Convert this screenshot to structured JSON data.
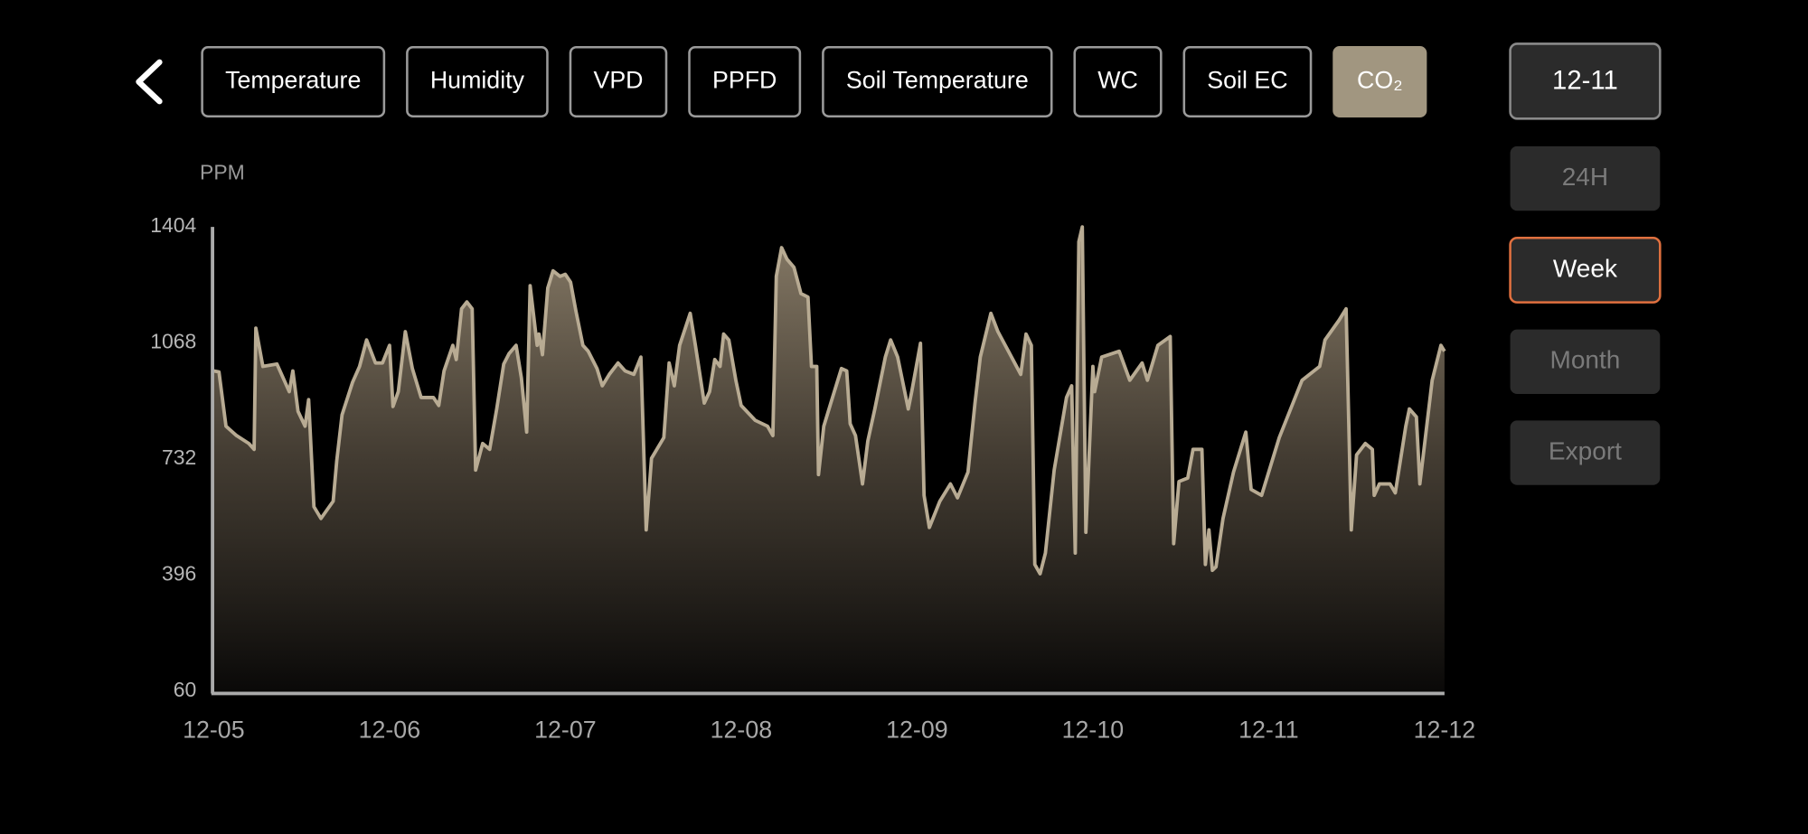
{
  "tabs": [
    {
      "label": "Temperature"
    },
    {
      "label": "Humidity"
    },
    {
      "label": "VPD"
    },
    {
      "label": "PPFD"
    },
    {
      "label": "Soil Temperature"
    },
    {
      "label": "WC"
    },
    {
      "label": "Soil EC"
    },
    {
      "label": "CO₂",
      "selected": true
    }
  ],
  "side": {
    "date": "12-11",
    "ranges": [
      {
        "label": "24H"
      },
      {
        "label": "Week",
        "selected": true
      },
      {
        "label": "Month"
      }
    ],
    "export": "Export"
  },
  "chart_data": {
    "type": "area",
    "y_label": "PPM",
    "color": "#b8ab93",
    "xlim": [
      0,
      7
    ],
    "xticks": [
      {
        "value": 0,
        "label": "12-05"
      },
      {
        "value": 1,
        "label": "12-06"
      },
      {
        "value": 2,
        "label": "12-07"
      },
      {
        "value": 3,
        "label": "12-08"
      },
      {
        "value": 4,
        "label": "12-09"
      },
      {
        "value": 5,
        "label": "12-10"
      },
      {
        "value": 6,
        "label": "12-11"
      },
      {
        "value": 7,
        "label": "12-12"
      }
    ],
    "ylim": [
      60,
      1404
    ],
    "yticks": [
      60,
      396,
      732,
      1068,
      1404
    ],
    "grid": false,
    "x": [
      0.0,
      0.03,
      0.07,
      0.13,
      0.2,
      0.23,
      0.24,
      0.28,
      0.36,
      0.43,
      0.45,
      0.48,
      0.52,
      0.54,
      0.57,
      0.61,
      0.68,
      0.7,
      0.73,
      0.79,
      0.83,
      0.87,
      0.92,
      0.96,
      1.0,
      1.02,
      1.05,
      1.09,
      1.13,
      1.18,
      1.25,
      1.28,
      1.31,
      1.36,
      1.38,
      1.41,
      1.44,
      1.47,
      1.49,
      1.53,
      1.57,
      1.61,
      1.65,
      1.68,
      1.72,
      1.75,
      1.78,
      1.8,
      1.84,
      1.85,
      1.87,
      1.9,
      1.93,
      1.97,
      2.0,
      2.03,
      2.06,
      2.1,
      2.13,
      2.18,
      2.21,
      2.25,
      2.3,
      2.34,
      2.39,
      2.43,
      2.46,
      2.49,
      2.56,
      2.59,
      2.62,
      2.65,
      2.71,
      2.74,
      2.79,
      2.82,
      2.85,
      2.88,
      2.9,
      2.93,
      2.97,
      3.0,
      3.08,
      3.15,
      3.18,
      3.2,
      3.23,
      3.26,
      3.3,
      3.34,
      3.38,
      3.4,
      3.43,
      3.44,
      3.47,
      3.51,
      3.57,
      3.6,
      3.62,
      3.65,
      3.69,
      3.72,
      3.76,
      3.82,
      3.85,
      3.89,
      3.95,
      3.97,
      4.02,
      4.04,
      4.07,
      4.13,
      4.19,
      4.23,
      4.29,
      4.33,
      4.36,
      4.42,
      4.46,
      4.52,
      4.59,
      4.62,
      4.65,
      4.67,
      4.7,
      4.73,
      4.78,
      4.85,
      4.88,
      4.9,
      4.92,
      4.94,
      4.96,
      5.0,
      5.01,
      5.05,
      5.15,
      5.21,
      5.28,
      5.31,
      5.37,
      5.44,
      5.46,
      5.49,
      5.54,
      5.57,
      5.62,
      5.64,
      5.66,
      5.68,
      5.7,
      5.74,
      5.8,
      5.87,
      5.9,
      5.96,
      6.06,
      6.19,
      6.29,
      6.32,
      6.4,
      6.44,
      6.47,
      6.5,
      6.55,
      6.59,
      6.6,
      6.63,
      6.69,
      6.72,
      6.78,
      6.8,
      6.84,
      6.86,
      6.93,
      6.98,
      7.0
    ],
    "values": [
      987,
      984,
      827,
      800,
      777,
      760,
      1111,
      1000,
      1007,
      927,
      987,
      870,
      827,
      904,
      594,
      560,
      610,
      727,
      860,
      954,
      1000,
      1077,
      1010,
      1010,
      1061,
      884,
      927,
      1101,
      994,
      910,
      910,
      887,
      987,
      1061,
      1020,
      1167,
      1187,
      1167,
      700,
      777,
      760,
      877,
      1007,
      1037,
      1061,
      967,
      810,
      1234,
      1061,
      1094,
      1034,
      1227,
      1277,
      1261,
      1267,
      1244,
      1161,
      1061,
      1044,
      994,
      944,
      977,
      1010,
      987,
      977,
      1027,
      527,
      734,
      794,
      1010,
      944,
      1061,
      1154,
      1061,
      894,
      927,
      1020,
      1000,
      1094,
      1077,
      960,
      887,
      844,
      827,
      800,
      1261,
      1344,
      1311,
      1287,
      1211,
      1201,
      1000,
      1000,
      687,
      827,
      894,
      994,
      987,
      834,
      800,
      660,
      784,
      877,
      1027,
      1077,
      1027,
      877,
      927,
      1067,
      627,
      534,
      610,
      660,
      620,
      694,
      894,
      1027,
      1154,
      1101,
      1044,
      977,
      1094,
      1061,
      427,
      400,
      460,
      700,
      910,
      944,
      460,
      1361,
      1404,
      520,
      1000,
      927,
      1027,
      1044,
      960,
      1010,
      960,
      1061,
      1087,
      487,
      667,
      677,
      760,
      760,
      427,
      527,
      410,
      420,
      560,
      694,
      810,
      644,
      627,
      794,
      960,
      1000,
      1077,
      1134,
      1167,
      527,
      744,
      777,
      760,
      627,
      660,
      660,
      634,
      827,
      877,
      854,
      660,
      960,
      1061,
      1044
    ]
  }
}
